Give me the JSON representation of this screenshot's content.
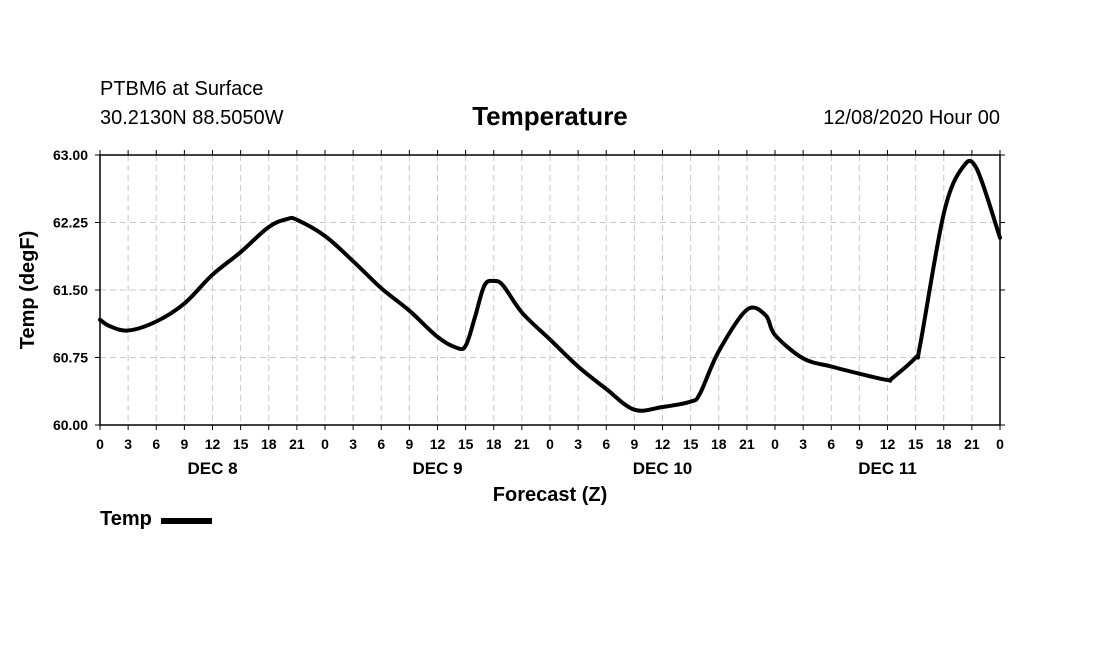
{
  "header": {
    "station": "PTBM6 at Surface",
    "coords": "30.2130N 88.5050W",
    "title": "Temperature",
    "date": "12/08/2020 Hour 00"
  },
  "legend": {
    "label": "Temp"
  },
  "colors": {
    "series": "#000000",
    "grid": "#c8c8c8"
  },
  "chart_data": {
    "type": "line",
    "title": "Temperature",
    "xlabel": "Forecast (Z)",
    "ylabel": "Temp (degF)",
    "ylim": [
      60.0,
      63.0
    ],
    "xlim": [
      0,
      96
    ],
    "grid": true,
    "legend_position": "bottom-left",
    "yticks": [
      60.0,
      60.75,
      61.5,
      62.25,
      63.0
    ],
    "ytick_labels": [
      "60.00",
      "60.75",
      "61.50",
      "62.25",
      "63.00"
    ],
    "xticks": [
      0,
      3,
      6,
      9,
      12,
      15,
      18,
      21,
      24,
      27,
      30,
      33,
      36,
      39,
      42,
      45,
      48,
      51,
      54,
      57,
      60,
      63,
      66,
      69,
      72,
      75,
      78,
      81,
      84,
      87,
      90,
      93,
      96
    ],
    "xtick_labels": [
      "0",
      "3",
      "6",
      "9",
      "12",
      "15",
      "18",
      "21",
      "0",
      "3",
      "6",
      "9",
      "12",
      "15",
      "18",
      "21",
      "0",
      "3",
      "6",
      "9",
      "12",
      "15",
      "18",
      "21",
      "0",
      "3",
      "6",
      "9",
      "12",
      "15",
      "18",
      "21",
      "0"
    ],
    "day_labels": [
      {
        "text": "DEC 8",
        "x": 12
      },
      {
        "text": "DEC 9",
        "x": 36
      },
      {
        "text": "DEC 10",
        "x": 60
      },
      {
        "text": "DEC 11",
        "x": 84
      }
    ],
    "series": [
      {
        "name": "Temp",
        "x": [
          0,
          1,
          3,
          6,
          9,
          12,
          15,
          18,
          20,
          21,
          24,
          27,
          30,
          33,
          36,
          38,
          39,
          40,
          41,
          42,
          43,
          45,
          48,
          51,
          54,
          57,
          60,
          63,
          64,
          66,
          69,
          71,
          72,
          75,
          78,
          81,
          84,
          84.5,
          87,
          87.5,
          90,
          92,
          93.5,
          96
        ],
        "y": [
          61.17,
          61.1,
          61.05,
          61.15,
          61.35,
          61.67,
          61.92,
          62.2,
          62.29,
          62.28,
          62.1,
          61.82,
          61.52,
          61.27,
          60.98,
          60.86,
          60.88,
          61.2,
          61.55,
          61.6,
          61.55,
          61.25,
          60.95,
          60.65,
          60.4,
          60.17,
          60.2,
          60.26,
          60.35,
          60.82,
          61.28,
          61.22,
          61.0,
          60.74,
          60.65,
          60.57,
          60.5,
          60.52,
          60.75,
          60.9,
          62.35,
          62.86,
          62.85,
          62.08
        ]
      }
    ]
  }
}
